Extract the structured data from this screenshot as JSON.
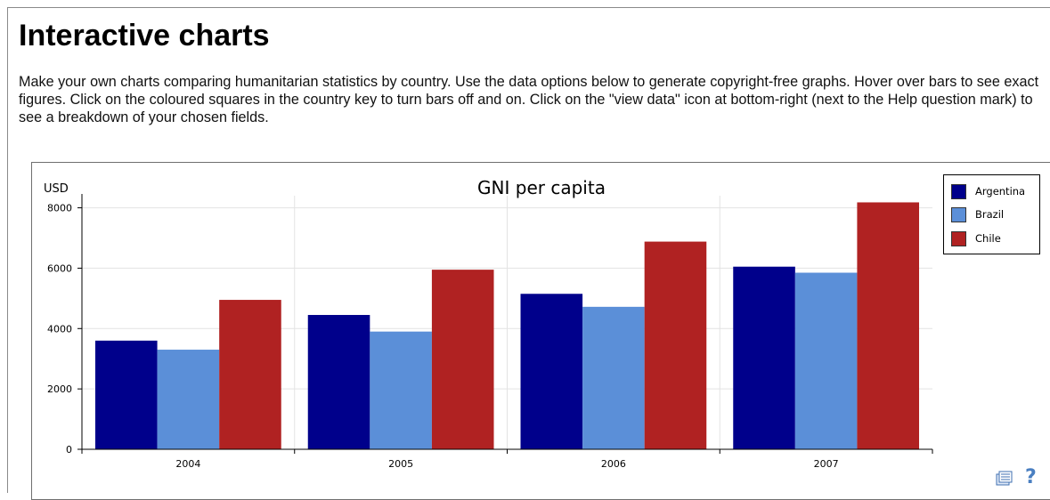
{
  "page": {
    "title": "Interactive charts",
    "intro": "Make your own charts comparing humanitarian statistics by country. Use the data options below to generate copyright-free graphs. Hover over bars to see exact figures. Click on the coloured squares in the country key to turn bars off and on. Click on the \"view data\" icon at bottom-right (next to the Help question mark) to see a breakdown of your chosen fields."
  },
  "icons": {
    "view_data": "view-data-icon",
    "help": "?"
  },
  "chart_data": {
    "type": "bar",
    "title": "GNI per capita",
    "xlabel": "",
    "ylabel": "USD",
    "categories": [
      "2004",
      "2005",
      "2006",
      "2007"
    ],
    "ylim": [
      0,
      8400
    ],
    "yticks": [
      0,
      2000,
      4000,
      6000,
      8000
    ],
    "grid": true,
    "legend_position": "top-right",
    "series": [
      {
        "name": "Argentina",
        "color": "#00008b",
        "values": [
          3600,
          4450,
          5150,
          6050
        ]
      },
      {
        "name": "Brazil",
        "color": "#5b8fd8",
        "values": [
          3300,
          3900,
          4720,
          5850
        ]
      },
      {
        "name": "Chile",
        "color": "#b02222",
        "values": [
          4950,
          5950,
          6880,
          8180
        ]
      }
    ]
  }
}
